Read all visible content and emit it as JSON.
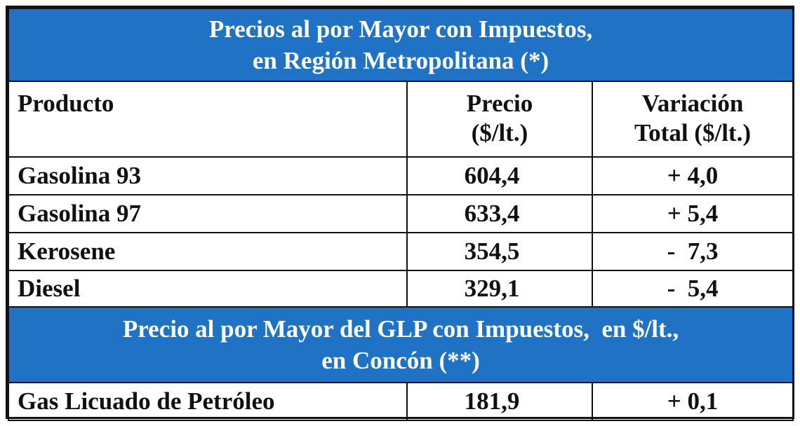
{
  "banner1": {
    "line1": "Precios al por Mayor con Impuestos,",
    "line2": "en Región Metropolitana (*)"
  },
  "headers": {
    "product": "Producto",
    "price_line1": "Precio",
    "price_line2": "($/lt.)",
    "variation_line1": "Variación",
    "variation_line2": "Total ($/lt.)"
  },
  "rows": [
    {
      "product": "Gasolina 93",
      "price": "604,4",
      "variation": "+ 4,0"
    },
    {
      "product": "Gasolina 97",
      "price": "633,4",
      "variation": "+ 5,4"
    },
    {
      "product": "Kerosene",
      "price": "354,5",
      "variation": "-  7,3"
    },
    {
      "product": "Diesel",
      "price": "329,1",
      "variation": "-  5,4"
    }
  ],
  "banner2": {
    "line1": "Precio al por Mayor del GLP con Impuestos,  en $/lt.,",
    "line2": "en Concón (**)"
  },
  "glp_row": {
    "product": "Gas Licuado de Petróleo",
    "price": "181,9",
    "variation": "+ 0,1"
  },
  "colors": {
    "banner_bg": "#1f72c4",
    "banner_text": "#ffffff",
    "border": "#111111",
    "text": "#111111"
  }
}
